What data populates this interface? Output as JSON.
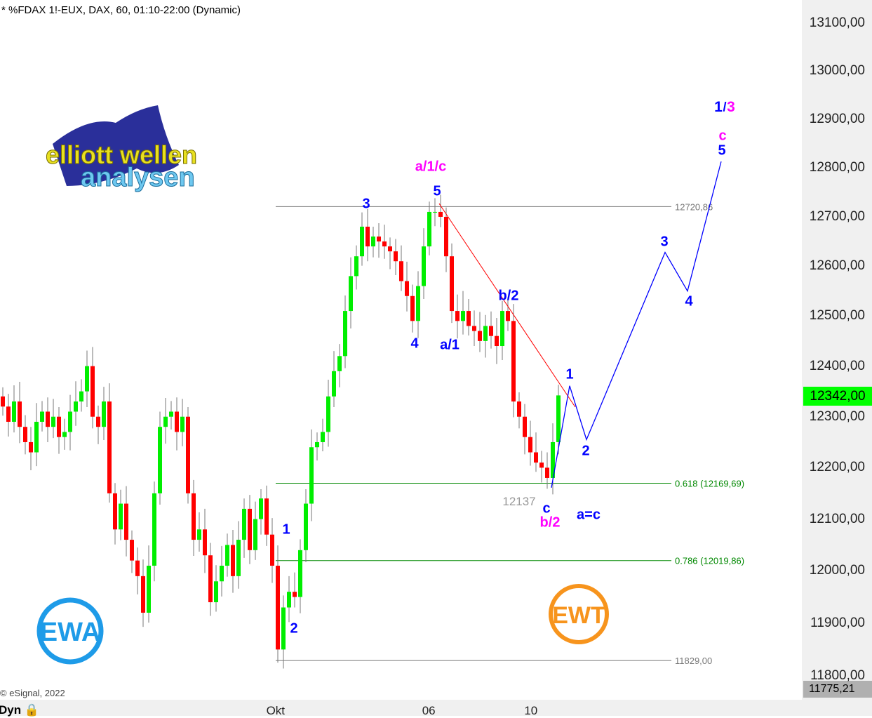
{
  "header": {
    "title": "* %FDAX 1!-EUX, DAX, 60, 01:10-22:00 (Dynamic)"
  },
  "footer": {
    "copyright": "© eSignal, 2022",
    "dyn_label": "Dyn"
  },
  "logos": {
    "top_left": "elliott wellen analysen",
    "bottom_left": "EWA",
    "bottom_right": "EWT"
  },
  "colors": {
    "up": "#00ee00",
    "down": "#ff0000",
    "wick": "#777777",
    "wave_blue": "#0000ff",
    "wave_magenta": "#ff00ff",
    "trendline": "#ff0000",
    "projection": "#0000ff",
    "fib_green": "#008800",
    "level_gray": "#777777"
  },
  "chart_data": {
    "type": "candlestick",
    "yscale": "log",
    "ylim": [
      11775.21,
      13150
    ],
    "y_ticks": [
      "13100,00",
      "13000,00",
      "12900,00",
      "12800,00",
      "12700,00",
      "12600,00",
      "12500,00",
      "12400,00",
      "12300,00",
      "12200,00",
      "12100,00",
      "12000,00",
      "11900,00",
      "11800,00"
    ],
    "y_tick_values": [
      13100,
      13000,
      12900,
      12800,
      12700,
      12600,
      12500,
      12400,
      12300,
      12200,
      12100,
      12000,
      11900,
      11800
    ],
    "x_ticks": [
      {
        "label": "Okt",
        "bar": 48.6
      },
      {
        "label": "06",
        "bar": 75.9
      },
      {
        "label": "10",
        "bar": 94.1
      }
    ],
    "current_price": "12342,00",
    "axis_low": "11775,21",
    "first_open": 12340,
    "closes": [
      12320,
      12290,
      12330,
      12280,
      12250,
      12230,
      12290,
      12310,
      12280,
      12300,
      12260,
      12270,
      12310,
      12330,
      12350,
      12400,
      12300,
      12280,
      12330,
      12150,
      12080,
      12130,
      12060,
      12020,
      11990,
      11920,
      12010,
      12150,
      12280,
      12300,
      12310,
      12270,
      12300,
      12150,
      12060,
      12080,
      12030,
      11940,
      11980,
      12010,
      12050,
      11990,
      12060,
      12120,
      12040,
      12100,
      12140,
      12070,
      12010,
      11850,
      11930,
      11960,
      11950,
      12040,
      12130,
      12240,
      12250,
      12270,
      12340,
      12390,
      12420,
      12510,
      12580,
      12620,
      12680,
      12640,
      12660,
      12650,
      12640,
      12630,
      12610,
      12570,
      12540,
      12490,
      12560,
      12640,
      12710,
      12710,
      12700,
      12620,
      12510,
      12490,
      12510,
      12480,
      12470,
      12450,
      12480,
      12460,
      12440,
      12510,
      12490,
      12330,
      12300,
      12260,
      12230,
      12210,
      12200,
      12180,
      12250,
      12342
    ],
    "levels": [
      {
        "price": 12720.86,
        "label": "12720,86",
        "color": "#777777"
      },
      {
        "price": 12169.69,
        "label": "0.618 (12169,69)",
        "color": "#008800"
      },
      {
        "price": 12019.86,
        "label": "0.786 (12019,86)",
        "color": "#008800"
      },
      {
        "price": 11829,
        "label": "11829,00",
        "color": "#777777"
      }
    ],
    "trendline": [
      {
        "bar": 77.75,
        "price": 12727
      },
      {
        "bar": 102,
        "price": 12319
      }
    ],
    "projection": [
      {
        "bar": 97.75,
        "price": 12161
      },
      {
        "bar": 101,
        "price": 12361
      },
      {
        "bar": 104,
        "price": 12255
      },
      {
        "bar": 118,
        "price": 12628
      },
      {
        "bar": 122,
        "price": 12550
      },
      {
        "bar": 128,
        "price": 12813
      }
    ],
    "low_annotation": "12137",
    "wave_labels": [
      {
        "text": "1",
        "color": "#0000ff"
      },
      {
        "text": "/",
        "color": "#0000ff"
      },
      {
        "text": "3",
        "color": "#ff00ff"
      },
      {
        "text": "c",
        "color": "#ff00ff"
      },
      {
        "text": "5",
        "color": "#0000ff"
      },
      {
        "text": "a/1/c",
        "color": "#ff00ff"
      },
      {
        "text": "5",
        "color": "#0000ff"
      },
      {
        "text": "3",
        "color": "#0000ff"
      },
      {
        "text": "4",
        "color": "#0000ff"
      },
      {
        "text": "a/1",
        "color": "#0000ff"
      },
      {
        "text": "b/2",
        "color": "#0000ff"
      },
      {
        "text": "1",
        "color": "#0000ff"
      },
      {
        "text": "2",
        "color": "#0000ff"
      },
      {
        "text": "3",
        "color": "#0000ff"
      },
      {
        "text": "4",
        "color": "#0000ff"
      },
      {
        "text": "1",
        "color": "#0000ff"
      },
      {
        "text": "2",
        "color": "#0000ff"
      },
      {
        "text": "c",
        "color": "#0000ff"
      },
      {
        "text": "b/2",
        "color": "#ff00ff"
      },
      {
        "text": "a=c",
        "color": "#0000ff"
      }
    ]
  }
}
